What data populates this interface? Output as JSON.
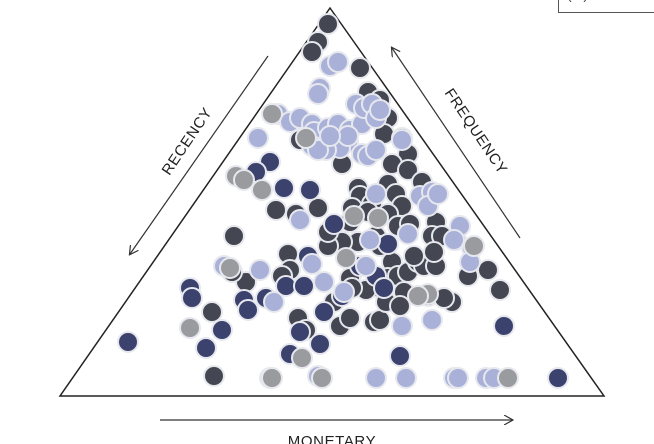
{
  "chart_data": {
    "type": "scatter",
    "title": "",
    "axes": {
      "recency": "RECENCY",
      "frequency": "FREQUENCY",
      "monetary": "MONETARY"
    },
    "legend_fragment": "(...)",
    "colors": {
      "charcoal": "#444751",
      "navy": "#3c426e",
      "periwinkle": "#a9b1d9",
      "gray": "#9a9b9f",
      "outline": "#222222",
      "halo": "#e6e8ee"
    },
    "series": [
      {
        "name": "",
        "color_key": "charcoal",
        "points": [
          [
            328,
            24
          ],
          [
            318,
            42
          ],
          [
            312,
            52
          ],
          [
            360,
            68
          ],
          [
            368,
            92
          ],
          [
            380,
            100
          ],
          [
            388,
            118
          ],
          [
            384,
            134
          ],
          [
            402,
            138
          ],
          [
            408,
            154
          ],
          [
            392,
            164
          ],
          [
            408,
            170
          ],
          [
            422,
            182
          ],
          [
            388,
            184
          ],
          [
            396,
            194
          ],
          [
            402,
            206
          ],
          [
            358,
            188
          ],
          [
            360,
            196
          ],
          [
            372,
            204
          ],
          [
            352,
            208
          ],
          [
            368,
            212
          ],
          [
            388,
            214
          ],
          [
            398,
            226
          ],
          [
            410,
            224
          ],
          [
            436,
            222
          ],
          [
            432,
            236
          ],
          [
            442,
            236
          ],
          [
            456,
            240
          ],
          [
            376,
            236
          ],
          [
            380,
            246
          ],
          [
            358,
            242
          ],
          [
            342,
            242
          ],
          [
            328,
            246
          ],
          [
            350,
            222
          ],
          [
            328,
            232
          ],
          [
            392,
            262
          ],
          [
            366,
            266
          ],
          [
            354,
            270
          ],
          [
            350,
            278
          ],
          [
            388,
            278
          ],
          [
            398,
            276
          ],
          [
            408,
            272
          ],
          [
            418,
            262
          ],
          [
            424,
            266
          ],
          [
            436,
            266
          ],
          [
            434,
            252
          ],
          [
            414,
            256
          ],
          [
            380,
            288
          ],
          [
            366,
            290
          ],
          [
            352,
            288
          ],
          [
            404,
            292
          ],
          [
            428,
            296
          ],
          [
            452,
            302
          ],
          [
            468,
            276
          ],
          [
            488,
            270
          ],
          [
            500,
            290
          ],
          [
            318,
            208
          ],
          [
            296,
            214
          ],
          [
            276,
            210
          ],
          [
            234,
            236
          ],
          [
            288,
            254
          ],
          [
            290,
            270
          ],
          [
            282,
            276
          ],
          [
            246,
            282
          ],
          [
            232,
            272
          ],
          [
            212,
            312
          ],
          [
            298,
            318
          ],
          [
            340,
            326
          ],
          [
            350,
            318
          ],
          [
            374,
            322
          ],
          [
            380,
            320
          ],
          [
            214,
            376
          ],
          [
            300,
            140
          ],
          [
            342,
            164
          ],
          [
            386,
            302
          ],
          [
            306,
            330
          ],
          [
            334,
            302
          ],
          [
            400,
            306
          ],
          [
            444,
            298
          ]
        ]
      },
      {
        "name": "",
        "color_key": "navy",
        "points": [
          [
            270,
            162
          ],
          [
            256,
            172
          ],
          [
            284,
            188
          ],
          [
            310,
            190
          ],
          [
            334,
            224
          ],
          [
            388,
            244
          ],
          [
            360,
            266
          ],
          [
            376,
            276
          ],
          [
            384,
            288
          ],
          [
            190,
            288
          ],
          [
            192,
            298
          ],
          [
            244,
            300
          ],
          [
            248,
            310
          ],
          [
            266,
            298
          ],
          [
            222,
            330
          ],
          [
            206,
            348
          ],
          [
            128,
            342
          ],
          [
            290,
            354
          ],
          [
            300,
            332
          ],
          [
            320,
            344
          ],
          [
            324,
            312
          ],
          [
            400,
            356
          ],
          [
            504,
            326
          ],
          [
            558,
            378
          ],
          [
            286,
            286
          ],
          [
            308,
            256
          ],
          [
            304,
            286
          ],
          [
            342,
            296
          ]
        ]
      },
      {
        "name": "",
        "color_key": "periwinkle",
        "points": [
          [
            330,
            66
          ],
          [
            338,
            62
          ],
          [
            320,
            88
          ],
          [
            318,
            94
          ],
          [
            278,
            114
          ],
          [
            290,
            122
          ],
          [
            300,
            118
          ],
          [
            312,
            124
          ],
          [
            314,
            132
          ],
          [
            328,
            128
          ],
          [
            338,
            124
          ],
          [
            350,
            130
          ],
          [
            362,
            124
          ],
          [
            356,
            104
          ],
          [
            364,
            108
          ],
          [
            372,
            104
          ],
          [
            376,
            118
          ],
          [
            380,
            110
          ],
          [
            348,
            142
          ],
          [
            340,
            148
          ],
          [
            326,
            150
          ],
          [
            312,
            146
          ],
          [
            318,
            150
          ],
          [
            362,
            154
          ],
          [
            368,
            156
          ],
          [
            376,
            150
          ],
          [
            402,
            140
          ],
          [
            258,
            138
          ],
          [
            376,
            194
          ],
          [
            420,
            196
          ],
          [
            432,
            192
          ],
          [
            428,
            206
          ],
          [
            438,
            194
          ],
          [
            408,
            234
          ],
          [
            370,
            240
          ],
          [
            460,
            226
          ],
          [
            454,
            240
          ],
          [
            472,
            248
          ],
          [
            470,
            262
          ],
          [
            300,
            220
          ],
          [
            260,
            270
          ],
          [
            224,
            266
          ],
          [
            274,
            302
          ],
          [
            312,
            264
          ],
          [
            324,
            282
          ],
          [
            344,
            292
          ],
          [
            366,
            266
          ],
          [
            402,
            326
          ],
          [
            432,
            320
          ],
          [
            270,
            378
          ],
          [
            318,
            376
          ],
          [
            376,
            378
          ],
          [
            406,
            378
          ],
          [
            454,
            378
          ],
          [
            458,
            378
          ],
          [
            486,
            378
          ],
          [
            494,
            378
          ],
          [
            348,
            136
          ],
          [
            330,
            136
          ]
        ]
      },
      {
        "name": "",
        "color_key": "gray",
        "points": [
          [
            272,
            114
          ],
          [
            306,
            138
          ],
          [
            236,
            176
          ],
          [
            262,
            190
          ],
          [
            354,
            216
          ],
          [
            378,
            218
          ],
          [
            474,
            246
          ],
          [
            428,
            294
          ],
          [
            418,
            296
          ],
          [
            190,
            328
          ],
          [
            302,
            358
          ],
          [
            322,
            378
          ],
          [
            508,
            378
          ],
          [
            272,
            378
          ],
          [
            244,
            180
          ],
          [
            346,
            258
          ],
          [
            230,
            268
          ]
        ]
      }
    ]
  }
}
